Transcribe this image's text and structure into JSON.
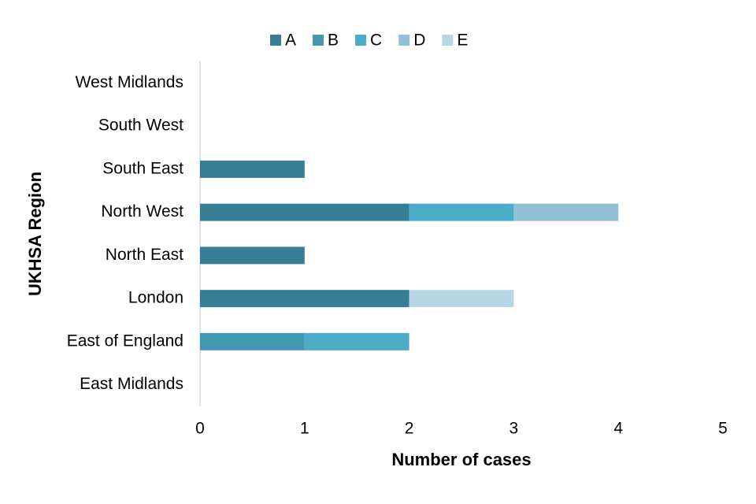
{
  "chart_data": {
    "type": "bar",
    "orientation": "horizontal",
    "stacked": true,
    "x_label": "Number of cases",
    "y_label": "UKHSA Region",
    "categories": [
      "West Midlands",
      "South West",
      "South East",
      "North West",
      "North East",
      "London",
      "East of England",
      "East Midlands"
    ],
    "series": [
      {
        "name": "A",
        "color": "#367e93",
        "values": [
          0,
          0,
          1,
          2,
          1,
          2,
          0,
          0
        ]
      },
      {
        "name": "B",
        "color": "#4198b0",
        "values": [
          0,
          0,
          0,
          0,
          0,
          0,
          1,
          0
        ]
      },
      {
        "name": "C",
        "color": "#4bacc6",
        "values": [
          0,
          0,
          0,
          1,
          0,
          0,
          1,
          0
        ]
      },
      {
        "name": "D",
        "color": "#92c1d5",
        "values": [
          0,
          0,
          0,
          1,
          0,
          0,
          0,
          0
        ]
      },
      {
        "name": "E",
        "color": "#b7d7e4",
        "values": [
          0,
          0,
          0,
          0,
          0,
          1,
          0,
          0
        ]
      }
    ],
    "xlim": [
      0,
      5
    ],
    "xticks": [
      0,
      1,
      2,
      3,
      4,
      5
    ],
    "grid": false,
    "legend": "top"
  }
}
